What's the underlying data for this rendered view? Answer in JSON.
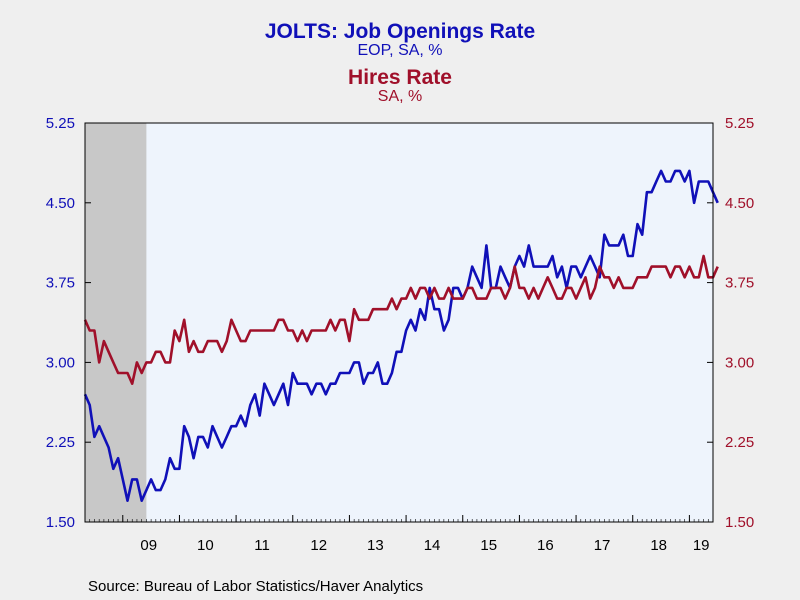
{
  "titles": {
    "series1_title": "JOLTS: Job Openings Rate",
    "series1_subtitle": "EOP, SA, %",
    "series2_title": "Hires Rate",
    "series2_subtitle": "SA, %"
  },
  "source": "Source:  Bureau of Labor Statistics/Haver Analytics",
  "colors": {
    "series1": "#1010b8",
    "series2": "#a0102a",
    "plot_bg": "#eef4fc",
    "recession": "#c8c8c8"
  },
  "chart_data": {
    "type": "line",
    "title": "JOLTS: Job Openings Rate / Hires Rate",
    "x_start": "2008-05",
    "x_end": "2019-06",
    "x_ticks": [
      "09",
      "10",
      "11",
      "12",
      "13",
      "14",
      "15",
      "16",
      "17",
      "18",
      "19"
    ],
    "y_left": {
      "ticks": [
        "1.50",
        "2.25",
        "3.00",
        "3.75",
        "4.50",
        "5.25"
      ],
      "ylim": [
        1.5,
        5.25
      ]
    },
    "y_right": {
      "ticks": [
        "1.50",
        "2.25",
        "3.00",
        "3.75",
        "4.50",
        "5.25"
      ],
      "ylim": [
        1.5,
        5.25
      ]
    },
    "recession": {
      "start": "2008-05",
      "end": "2009-06"
    },
    "grid": false,
    "series": [
      {
        "name": "JOLTS: Job Openings Rate",
        "axis": "left",
        "values": [
          2.7,
          2.6,
          2.3,
          2.4,
          2.3,
          2.2,
          2.0,
          2.1,
          1.9,
          1.7,
          1.9,
          1.9,
          1.7,
          1.8,
          1.9,
          1.8,
          1.8,
          1.9,
          2.1,
          2.0,
          2.0,
          2.4,
          2.3,
          2.1,
          2.3,
          2.3,
          2.2,
          2.4,
          2.3,
          2.2,
          2.3,
          2.4,
          2.4,
          2.5,
          2.4,
          2.6,
          2.7,
          2.5,
          2.8,
          2.7,
          2.6,
          2.7,
          2.8,
          2.6,
          2.9,
          2.8,
          2.8,
          2.8,
          2.7,
          2.8,
          2.8,
          2.7,
          2.8,
          2.8,
          2.9,
          2.9,
          2.9,
          3.0,
          3.0,
          2.8,
          2.9,
          2.9,
          3.0,
          2.8,
          2.8,
          2.9,
          3.1,
          3.1,
          3.3,
          3.4,
          3.3,
          3.5,
          3.4,
          3.7,
          3.5,
          3.5,
          3.3,
          3.4,
          3.7,
          3.7,
          3.6,
          3.7,
          3.9,
          3.8,
          3.7,
          4.1,
          3.7,
          3.7,
          3.9,
          3.8,
          3.7,
          3.9,
          4.0,
          3.9,
          4.1,
          3.9,
          3.9,
          3.9,
          3.9,
          4.0,
          3.8,
          3.9,
          3.7,
          3.9,
          3.9,
          3.8,
          3.9,
          4.0,
          3.9,
          3.8,
          4.2,
          4.1,
          4.1,
          4.1,
          4.2,
          4.0,
          4.0,
          4.3,
          4.2,
          4.6,
          4.6,
          4.7,
          4.8,
          4.7,
          4.7,
          4.8,
          4.8,
          4.7,
          4.8,
          4.5,
          4.7,
          4.7,
          4.7,
          4.6,
          4.5
        ]
      },
      {
        "name": "Hires Rate",
        "axis": "right",
        "values": [
          3.4,
          3.3,
          3.3,
          3.0,
          3.2,
          3.1,
          3.0,
          2.9,
          2.9,
          2.9,
          2.8,
          3.0,
          2.9,
          3.0,
          3.0,
          3.1,
          3.1,
          3.0,
          3.0,
          3.3,
          3.2,
          3.4,
          3.1,
          3.2,
          3.1,
          3.1,
          3.2,
          3.2,
          3.2,
          3.1,
          3.2,
          3.4,
          3.3,
          3.2,
          3.2,
          3.3,
          3.3,
          3.3,
          3.3,
          3.3,
          3.3,
          3.4,
          3.4,
          3.3,
          3.3,
          3.2,
          3.3,
          3.2,
          3.3,
          3.3,
          3.3,
          3.3,
          3.4,
          3.3,
          3.4,
          3.4,
          3.2,
          3.5,
          3.4,
          3.4,
          3.4,
          3.5,
          3.5,
          3.5,
          3.5,
          3.6,
          3.5,
          3.6,
          3.6,
          3.7,
          3.6,
          3.7,
          3.7,
          3.6,
          3.7,
          3.6,
          3.6,
          3.7,
          3.6,
          3.6,
          3.6,
          3.7,
          3.7,
          3.6,
          3.6,
          3.6,
          3.7,
          3.7,
          3.7,
          3.6,
          3.7,
          3.9,
          3.7,
          3.7,
          3.6,
          3.7,
          3.6,
          3.7,
          3.8,
          3.7,
          3.6,
          3.6,
          3.7,
          3.7,
          3.6,
          3.7,
          3.8,
          3.6,
          3.7,
          3.9,
          3.8,
          3.8,
          3.7,
          3.8,
          3.7,
          3.7,
          3.7,
          3.8,
          3.8,
          3.8,
          3.9,
          3.9,
          3.9,
          3.9,
          3.8,
          3.9,
          3.9,
          3.8,
          3.9,
          3.8,
          3.8,
          4.0,
          3.8,
          3.8,
          3.9
        ]
      }
    ]
  }
}
